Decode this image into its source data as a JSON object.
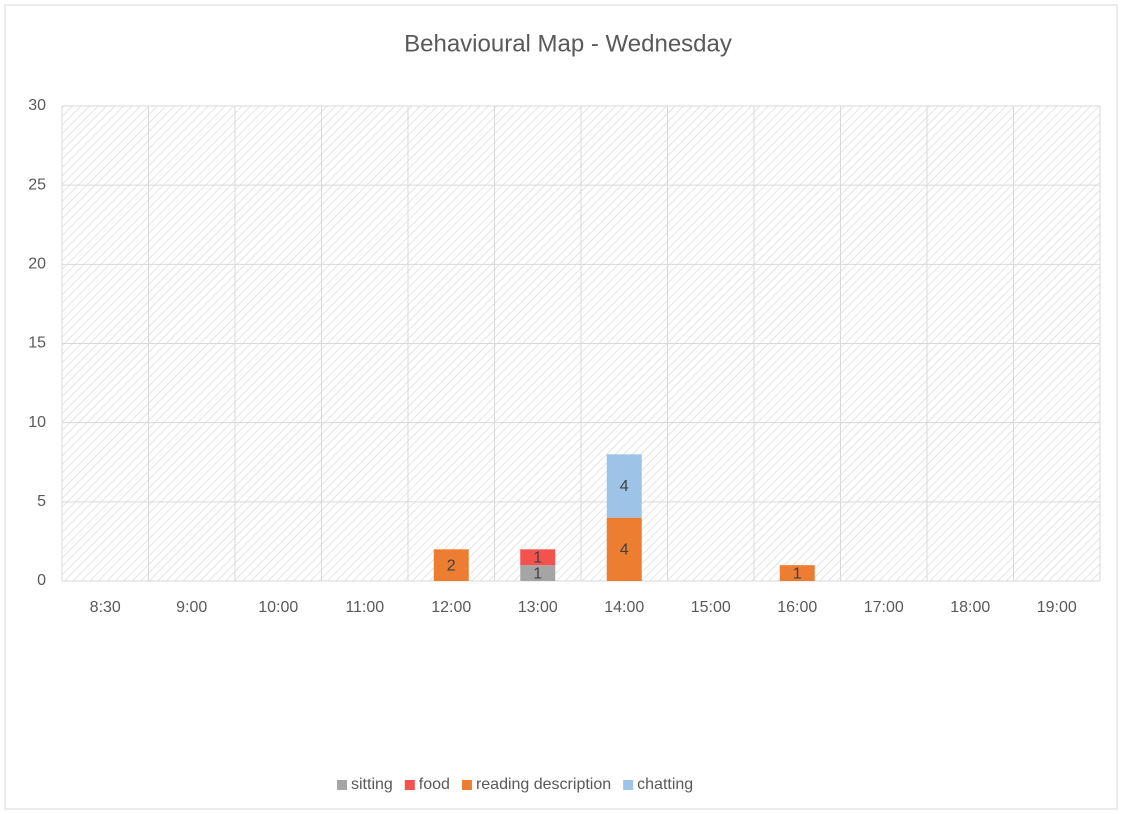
{
  "chart_data": {
    "type": "stacked_bar",
    "title": "Behavioural Map - Wednesday",
    "categories": [
      "8:30",
      "9:00",
      "10:00",
      "11:00",
      "12:00",
      "13:00",
      "14:00",
      "15:00",
      "16:00",
      "17:00",
      "18:00",
      "19:00"
    ],
    "series": [
      {
        "name": "sitting",
        "color": "#a5a5a5",
        "values": [
          null,
          null,
          null,
          null,
          null,
          1,
          null,
          null,
          null,
          null,
          null,
          null
        ]
      },
      {
        "name": "food",
        "color": "#f4524e",
        "values": [
          null,
          null,
          null,
          null,
          null,
          1,
          null,
          null,
          null,
          null,
          null,
          null
        ]
      },
      {
        "name": "reading description",
        "color": "#ed7d31",
        "values": [
          null,
          null,
          null,
          null,
          2,
          null,
          4,
          null,
          1,
          null,
          null,
          null
        ]
      },
      {
        "name": "chatting",
        "color": "#9dc3e6",
        "values": [
          null,
          null,
          null,
          null,
          null,
          null,
          4,
          null,
          null,
          null,
          null,
          null
        ]
      }
    ],
    "ylim": [
      0,
      30
    ],
    "yticks": [
      0,
      5,
      10,
      15,
      20,
      25,
      30
    ],
    "grid": true,
    "legend": "bottom"
  }
}
